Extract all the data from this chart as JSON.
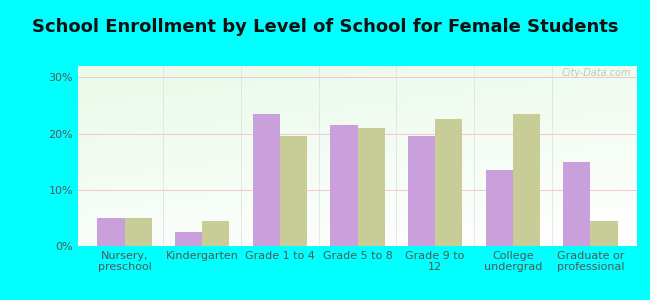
{
  "title": "School Enrollment by Level of School for Female Students",
  "categories": [
    "Nursery,\npreschool",
    "Kindergarten",
    "Grade 1 to 4",
    "Grade 5 to 8",
    "Grade 9 to\n12",
    "College\nundergrad",
    "Graduate or\nprofessional"
  ],
  "santa_clara": [
    5.0,
    2.5,
    23.5,
    21.5,
    19.5,
    13.5,
    15.0
  ],
  "utah": [
    5.0,
    4.5,
    19.5,
    21.0,
    22.5,
    23.5,
    4.5
  ],
  "santa_clara_color": "#c9a0dc",
  "utah_color": "#c8cc96",
  "background_color": "#00ffff",
  "plot_bg_top_left": "#e8f5e0",
  "plot_bg_bottom_right": "#f8fff8",
  "yticks": [
    0,
    10,
    20,
    30
  ],
  "ylim": [
    0,
    32
  ],
  "bar_width": 0.35,
  "title_fontsize": 13,
  "tick_fontsize": 8,
  "legend_fontsize": 9,
  "watermark_text": "City-Data.com",
  "tick_color": "#555555",
  "legend_label_color": "#555555"
}
